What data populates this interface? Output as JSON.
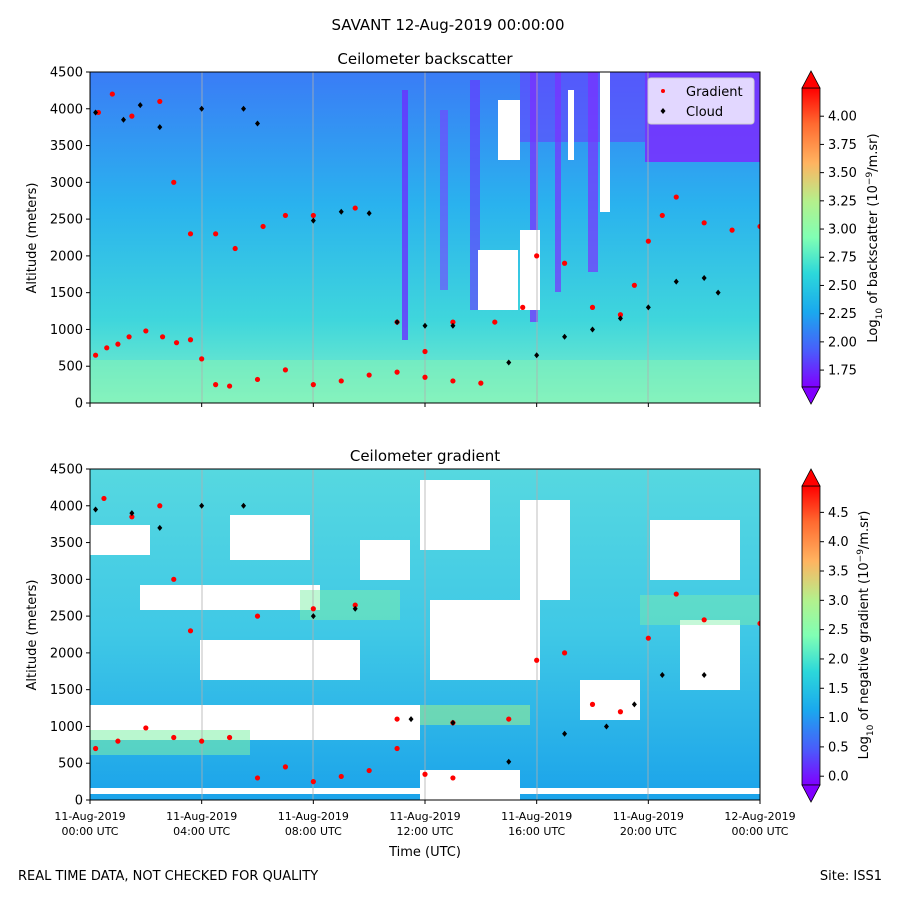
{
  "figure": {
    "suptitle": "SAVANT 12-Aug-2019 00:00:00",
    "footer_left": "REAL TIME DATA, NOT CHECKED FOR QUALITY",
    "footer_right": "Site: ISS1"
  },
  "chart_data": [
    {
      "type": "heatmap",
      "title": "Ceilometer backscatter",
      "xlabel": "",
      "ylabel": "Altitude (meters)",
      "ylim": [
        0,
        4500
      ],
      "yticks": [
        "0",
        "500",
        "1000",
        "1500",
        "2000",
        "2500",
        "3000",
        "3500",
        "4000",
        "4500"
      ],
      "colorbar": {
        "label": "Log10 of backscatter (10^-9/m.sr)",
        "label_parts": {
          "a": "Log",
          "b": "10",
          "c": " of backscatter (10",
          "d": "−9",
          "e": "/m.sr)"
        },
        "ticks": [
          "1.75",
          "2.00",
          "2.25",
          "2.50",
          "2.75",
          "3.00",
          "3.25",
          "3.50",
          "3.75",
          "4.00"
        ],
        "range": [
          1.6,
          4.25
        ]
      },
      "legend": {
        "placement": "top-right",
        "entries": [
          {
            "name": "Gradient",
            "color": "#ff0000"
          },
          {
            "name": "Cloud",
            "color": "#000000"
          }
        ]
      },
      "series": [
        {
          "name": "Gradient",
          "points": [
            [
              0.2,
              650
            ],
            [
              0.6,
              750
            ],
            [
              1.0,
              800
            ],
            [
              1.4,
              900
            ],
            [
              2.0,
              980
            ],
            [
              2.6,
              900
            ],
            [
              3.1,
              820
            ],
            [
              3.6,
              860
            ],
            [
              4.0,
              600
            ],
            [
              4.5,
              250
            ],
            [
              5.0,
              230
            ],
            [
              6.0,
              320
            ],
            [
              7.0,
              450
            ],
            [
              8.0,
              250
            ],
            [
              9.0,
              300
            ],
            [
              10.0,
              380
            ],
            [
              11.0,
              420
            ],
            [
              12.0,
              350
            ],
            [
              13.0,
              300
            ],
            [
              14.0,
              270
            ],
            [
              0.3,
              3950
            ],
            [
              0.8,
              4200
            ],
            [
              1.5,
              3900
            ],
            [
              2.5,
              4100
            ],
            [
              3.0,
              3000
            ],
            [
              3.6,
              2300
            ],
            [
              4.5,
              2300
            ],
            [
              5.2,
              2100
            ],
            [
              6.2,
              2400
            ],
            [
              7.0,
              2550
            ],
            [
              8.0,
              2550
            ],
            [
              9.5,
              2650
            ],
            [
              11.0,
              1100
            ],
            [
              12.0,
              700
            ],
            [
              13.0,
              1100
            ],
            [
              14.5,
              1100
            ],
            [
              15.5,
              1300
            ],
            [
              16.0,
              2000
            ],
            [
              17.0,
              1900
            ],
            [
              18.0,
              1300
            ],
            [
              19.0,
              1200
            ],
            [
              19.5,
              1600
            ],
            [
              20.0,
              2200
            ],
            [
              20.5,
              2550
            ],
            [
              21.0,
              2800
            ],
            [
              22.0,
              2450
            ],
            [
              23.0,
              2350
            ],
            [
              24.0,
              2400
            ]
          ]
        },
        {
          "name": "Cloud",
          "points": [
            [
              0.2,
              3950
            ],
            [
              1.2,
              3850
            ],
            [
              1.8,
              4050
            ],
            [
              2.5,
              3750
            ],
            [
              4.0,
              4000
            ],
            [
              5.5,
              4000
            ],
            [
              6.0,
              3800
            ],
            [
              8.0,
              2480
            ],
            [
              9.0,
              2600
            ],
            [
              10.0,
              2580
            ],
            [
              11.0,
              1100
            ],
            [
              12.0,
              1050
            ],
            [
              13.0,
              1050
            ],
            [
              15.0,
              550
            ],
            [
              16.0,
              650
            ],
            [
              17.0,
              900
            ],
            [
              18.0,
              1000
            ],
            [
              19.0,
              1150
            ],
            [
              20.0,
              1300
            ],
            [
              21.0,
              1650
            ],
            [
              22.0,
              1700
            ],
            [
              22.5,
              1500
            ]
          ]
        }
      ]
    },
    {
      "type": "heatmap",
      "title": "Ceilometer gradient",
      "xlabel": "Time (UTC)",
      "ylabel": "Altitude (meters)",
      "ylim": [
        0,
        4500
      ],
      "yticks": [
        "0",
        "500",
        "1000",
        "1500",
        "2000",
        "2500",
        "3000",
        "3500",
        "4000",
        "4500"
      ],
      "xticks": [
        {
          "date": "11-Aug-2019",
          "time": "00:00 UTC"
        },
        {
          "date": "11-Aug-2019",
          "time": "04:00 UTC"
        },
        {
          "date": "11-Aug-2019",
          "time": "08:00 UTC"
        },
        {
          "date": "11-Aug-2019",
          "time": "12:00 UTC"
        },
        {
          "date": "11-Aug-2019",
          "time": "16:00 UTC"
        },
        {
          "date": "11-Aug-2019",
          "time": "20:00 UTC"
        },
        {
          "date": "12-Aug-2019",
          "time": "00:00 UTC"
        }
      ],
      "colorbar": {
        "label": "Log10 of negative gradient (10^-9/m.sr)",
        "label_parts": {
          "a": "Log",
          "b": "10",
          "c": " of negative gradient (10",
          "d": "−9",
          "e": "/m.sr)"
        },
        "ticks": [
          "0.0",
          "0.5",
          "1.0",
          "1.5",
          "2.0",
          "2.5",
          "3.0",
          "3.5",
          "4.0",
          "4.5"
        ],
        "range": [
          -0.15,
          4.95
        ]
      },
      "series": [
        {
          "name": "Gradient",
          "points": [
            [
              0.2,
              700
            ],
            [
              1.0,
              800
            ],
            [
              2.0,
              980
            ],
            [
              3.0,
              850
            ],
            [
              4.0,
              800
            ],
            [
              5.0,
              850
            ],
            [
              6.0,
              300
            ],
            [
              7.0,
              450
            ],
            [
              8.0,
              250
            ],
            [
              9.0,
              320
            ],
            [
              10.0,
              400
            ],
            [
              11.0,
              700
            ],
            [
              12.0,
              350
            ],
            [
              13.0,
              300
            ],
            [
              0.5,
              4100
            ],
            [
              1.5,
              3850
            ],
            [
              2.5,
              4000
            ],
            [
              3.0,
              3000
            ],
            [
              3.6,
              2300
            ],
            [
              6.0,
              2500
            ],
            [
              8.0,
              2600
            ],
            [
              9.5,
              2650
            ],
            [
              11.0,
              1100
            ],
            [
              13.0,
              1050
            ],
            [
              15.0,
              1100
            ],
            [
              16.0,
              1900
            ],
            [
              17.0,
              2000
            ],
            [
              18.0,
              1300
            ],
            [
              19.0,
              1200
            ],
            [
              20.0,
              2200
            ],
            [
              21.0,
              2800
            ],
            [
              22.0,
              2450
            ],
            [
              24.0,
              2400
            ]
          ]
        },
        {
          "name": "Cloud",
          "points": [
            [
              0.2,
              3950
            ],
            [
              1.5,
              3900
            ],
            [
              2.5,
              3700
            ],
            [
              4.0,
              4000
            ],
            [
              5.5,
              4000
            ],
            [
              8.0,
              2500
            ],
            [
              9.5,
              2600
            ],
            [
              11.5,
              1100
            ],
            [
              13.0,
              1050
            ],
            [
              15.0,
              520
            ],
            [
              17.0,
              900
            ],
            [
              18.5,
              1000
            ],
            [
              19.5,
              1300
            ],
            [
              20.5,
              1700
            ],
            [
              22.0,
              1700
            ]
          ]
        }
      ]
    }
  ]
}
